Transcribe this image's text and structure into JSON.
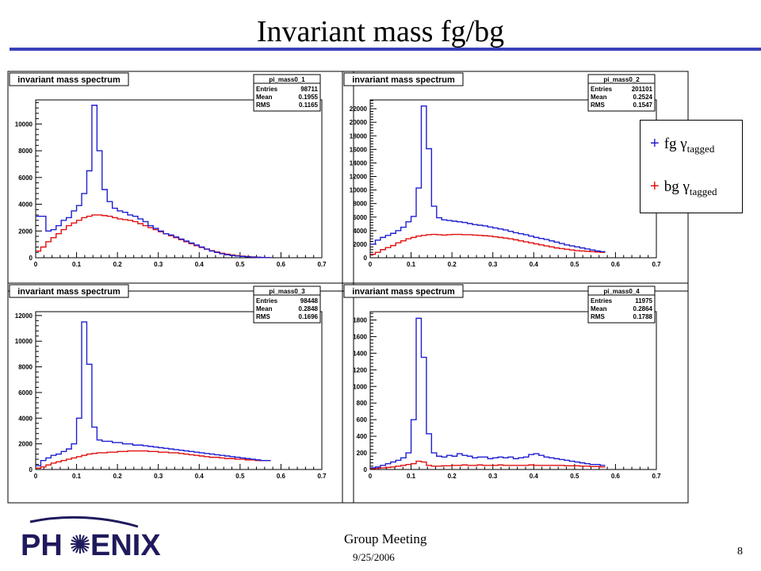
{
  "slide": {
    "title": "Invariant mass fg/bg",
    "footer_meeting": "Group Meeting",
    "footer_date": "9/25/2006",
    "page_number": "8",
    "logo_text_left": "PH",
    "logo_text_right": "ENIX"
  },
  "legend": {
    "fg": {
      "marker": "+",
      "label": "fg γ",
      "sub": "tagged",
      "color": "#1f1fd0"
    },
    "bg": {
      "marker": "+",
      "label": "bg γ",
      "sub": "tagged",
      "color": "#e01010"
    }
  },
  "colors": {
    "fg": "#1f1fd0",
    "bg": "#e01010",
    "title_rule": "#3a40b8"
  },
  "chart_data": [
    {
      "type": "line",
      "title": "invariant mass spectrum",
      "histogram_name": "pi_mass0_1",
      "stats": [
        [
          "Entries",
          "98711"
        ],
        [
          "Mean",
          "0.1955"
        ],
        [
          "RMS",
          "0.1165"
        ]
      ],
      "xlim": [
        0,
        0.7
      ],
      "ylim": [
        0,
        11800
      ],
      "xticks": [
        0,
        0.1,
        0.2,
        0.3,
        0.4,
        0.5,
        0.6,
        0.7
      ],
      "xtick_labels": [
        "0",
        "0.1",
        "0.2",
        "0.3",
        "0.4",
        "0.5",
        "0.6",
        "0.7"
      ],
      "yticks": [
        0,
        2000,
        4000,
        6000,
        8000,
        10000
      ],
      "ytick_labels": [
        "0",
        "2000",
        "4000",
        "6000",
        "8000",
        "10000"
      ],
      "bin_width": 0.0125,
      "series": [
        {
          "name": "fg",
          "values": [
            3100,
            3100,
            2000,
            2100,
            2400,
            2800,
            3000,
            3500,
            3900,
            4800,
            6500,
            11400,
            8000,
            5100,
            4200,
            3700,
            3500,
            3400,
            3200,
            3100,
            2900,
            2700,
            2400,
            2200,
            2000,
            1800,
            1700,
            1550,
            1400,
            1250,
            1100,
            950,
            800,
            650,
            500,
            400,
            300,
            220,
            170,
            130,
            100,
            70,
            50,
            30,
            20,
            10
          ]
        },
        {
          "name": "bg",
          "values": [
            500,
            800,
            1200,
            1500,
            1800,
            2100,
            2400,
            2600,
            2800,
            3000,
            3100,
            3200,
            3200,
            3150,
            3100,
            3000,
            2900,
            2850,
            2800,
            2700,
            2550,
            2400,
            2250,
            2100,
            1950,
            1800,
            1650,
            1500,
            1350,
            1200,
            1050,
            900,
            770,
            650,
            530,
            430,
            340,
            270,
            210,
            160,
            120,
            90,
            60,
            40,
            25,
            10
          ]
        }
      ]
    },
    {
      "type": "line",
      "title": "invariant mass spectrum",
      "histogram_name": "pi_mass0_2",
      "stats": [
        [
          "Entries",
          "201101"
        ],
        [
          "Mean",
          "0.2524"
        ],
        [
          "RMS",
          "0.1547"
        ]
      ],
      "xlim": [
        0,
        0.7
      ],
      "ylim": [
        0,
        23300
      ],
      "xticks": [
        0,
        0.1,
        0.2,
        0.3,
        0.4,
        0.5,
        0.6,
        0.7
      ],
      "xtick_labels": [
        "0",
        "0.1",
        "0.2",
        "0.3",
        "0.4",
        "0.5",
        "0.6",
        "0.7"
      ],
      "yticks": [
        0,
        2000,
        4000,
        6000,
        8000,
        10000,
        12000,
        14000,
        16000,
        18000,
        20000,
        22000
      ],
      "ytick_labels": [
        "0",
        "2000",
        "4000",
        "6000",
        "8000",
        "10000",
        "12000",
        "14000",
        "16000",
        "18000",
        "20000",
        "22000"
      ],
      "bin_width": 0.0125,
      "series": [
        {
          "name": "fg",
          "values": [
            2000,
            2600,
            3000,
            3300,
            3600,
            4000,
            4500,
            5300,
            6100,
            10300,
            22400,
            16100,
            7600,
            5900,
            5600,
            5500,
            5400,
            5300,
            5200,
            5050,
            4900,
            4800,
            4700,
            4550,
            4400,
            4250,
            4100,
            3900,
            3700,
            3550,
            3400,
            3200,
            3000,
            2850,
            2700,
            2500,
            2300,
            2100,
            1900,
            1750,
            1600,
            1450,
            1300,
            1150,
            1000,
            900
          ]
        },
        {
          "name": "bg",
          "values": [
            500,
            800,
            1200,
            1500,
            1800,
            2200,
            2500,
            2800,
            3000,
            3200,
            3300,
            3400,
            3450,
            3400,
            3350,
            3400,
            3450,
            3450,
            3400,
            3400,
            3350,
            3300,
            3250,
            3200,
            3100,
            3000,
            2900,
            2800,
            2650,
            2500,
            2350,
            2200,
            2050,
            1900,
            1750,
            1600,
            1450,
            1350,
            1250,
            1150,
            1050,
            1000,
            950,
            900,
            850,
            800
          ]
        }
      ]
    },
    {
      "type": "line",
      "title": "invariant mass spectrum",
      "histogram_name": "pi_mass0_3",
      "stats": [
        [
          "Entries",
          "98448"
        ],
        [
          "Mean",
          "0.2848"
        ],
        [
          "RMS",
          "0.1696"
        ]
      ],
      "xlim": [
        0,
        0.7
      ],
      "ylim": [
        0,
        12300
      ],
      "xticks": [
        0,
        0.1,
        0.2,
        0.3,
        0.4,
        0.5,
        0.6,
        0.7
      ],
      "xtick_labels": [
        "0",
        "0.1",
        "0.2",
        "0.3",
        "0.4",
        "0.5",
        "0.6",
        "0.7"
      ],
      "yticks": [
        0,
        2000,
        4000,
        6000,
        8000,
        10000,
        12000
      ],
      "ytick_labels": [
        "0",
        "2000",
        "4000",
        "6000",
        "8000",
        "10000",
        "12000"
      ],
      "bin_width": 0.0125,
      "series": [
        {
          "name": "fg",
          "values": [
            300,
            700,
            900,
            1100,
            1200,
            1400,
            1600,
            2000,
            4000,
            11500,
            8200,
            3300,
            2300,
            2200,
            2200,
            2100,
            2100,
            2000,
            2000,
            1900,
            1900,
            1850,
            1800,
            1750,
            1700,
            1650,
            1600,
            1550,
            1500,
            1450,
            1400,
            1350,
            1300,
            1250,
            1200,
            1150,
            1100,
            1050,
            1000,
            950,
            900,
            850,
            800,
            750,
            700,
            700
          ]
        },
        {
          "name": "bg",
          "values": [
            100,
            200,
            350,
            500,
            600,
            700,
            800,
            900,
            1000,
            1100,
            1200,
            1250,
            1300,
            1300,
            1350,
            1350,
            1400,
            1400,
            1450,
            1450,
            1450,
            1450,
            1400,
            1400,
            1350,
            1350,
            1300,
            1300,
            1250,
            1200,
            1150,
            1100,
            1050,
            1000,
            950,
            950,
            900,
            850,
            850,
            800,
            800,
            750,
            750,
            700,
            700,
            700
          ]
        }
      ]
    },
    {
      "type": "line",
      "title": "invariant mass spectrum",
      "histogram_name": "pi_mass0_4",
      "stats": [
        [
          "Entries",
          "11975"
        ],
        [
          "Mean",
          "0.2864"
        ],
        [
          "RMS",
          "0.1788"
        ]
      ],
      "xlim": [
        0,
        0.7
      ],
      "ylim": [
        0,
        1900
      ],
      "xticks": [
        0,
        0.1,
        0.2,
        0.3,
        0.4,
        0.5,
        0.6,
        0.7
      ],
      "xtick_labels": [
        "0",
        "0.1",
        "0.2",
        "0.3",
        "0.4",
        "0.5",
        "0.6",
        "0.7"
      ],
      "yticks": [
        0,
        200,
        400,
        600,
        800,
        1000,
        1200,
        1400,
        1600,
        1800
      ],
      "ytick_labels": [
        "0",
        "200",
        "400",
        "600",
        "800",
        "1000",
        "1200",
        "1400",
        "1600",
        "1800"
      ],
      "bin_width": 0.0125,
      "series": [
        {
          "name": "fg",
          "values": [
            20,
            30,
            50,
            70,
            90,
            110,
            140,
            200,
            600,
            1820,
            1350,
            430,
            200,
            160,
            150,
            170,
            160,
            190,
            170,
            160,
            140,
            150,
            150,
            130,
            140,
            150,
            140,
            150,
            130,
            140,
            150,
            180,
            190,
            170,
            150,
            140,
            130,
            120,
            110,
            100,
            90,
            80,
            70,
            60,
            60,
            50
          ]
        },
        {
          "name": "bg",
          "values": [
            10,
            15,
            20,
            25,
            30,
            40,
            50,
            60,
            70,
            100,
            90,
            50,
            40,
            40,
            45,
            45,
            50,
            50,
            55,
            50,
            50,
            55,
            50,
            50,
            50,
            55,
            50,
            50,
            50,
            50,
            50,
            55,
            50,
            50,
            50,
            50,
            50,
            50,
            45,
            45,
            45,
            40,
            40,
            35,
            35,
            30
          ]
        }
      ]
    }
  ]
}
